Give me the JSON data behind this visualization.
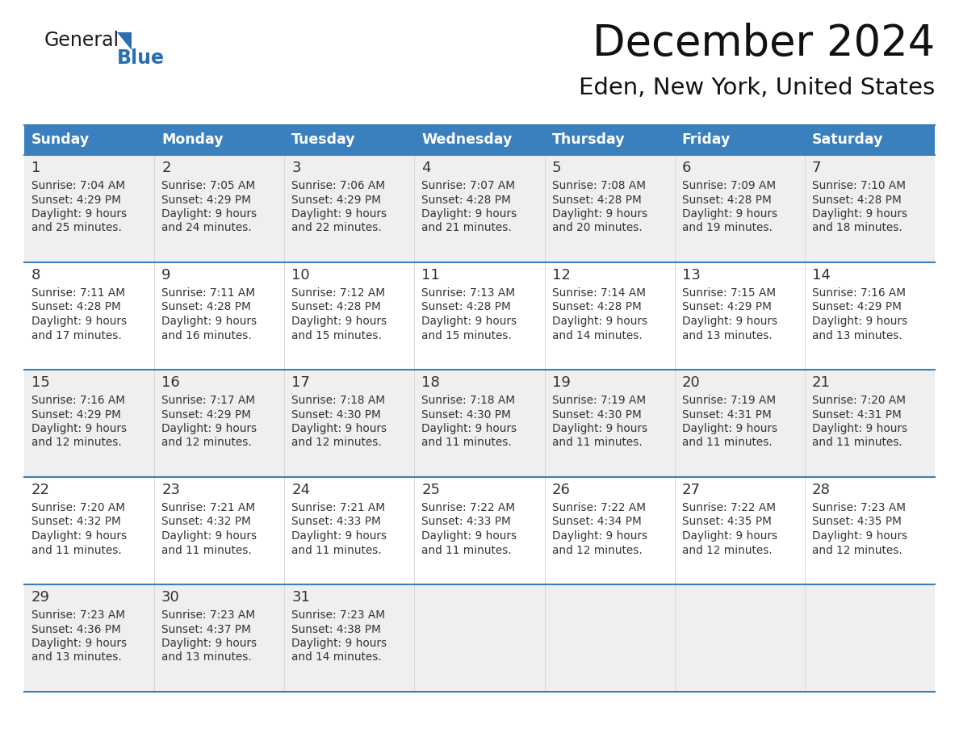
{
  "title": "December 2024",
  "subtitle": "Eden, New York, United States",
  "header_color": "#3a7fbe",
  "header_text_color": "#ffffff",
  "cell_bg_even": "#efefef",
  "cell_bg_odd": "#ffffff",
  "day_number_color": "#333333",
  "text_color": "#333333",
  "border_color": "#3a7fbe",
  "separator_color": "#c8c8c8",
  "days_of_week": [
    "Sunday",
    "Monday",
    "Tuesday",
    "Wednesday",
    "Thursday",
    "Friday",
    "Saturday"
  ],
  "calendar_data": [
    [
      {
        "day": 1,
        "sunrise": "7:04 AM",
        "sunset": "4:29 PM",
        "daylight_hours": 9,
        "daylight_minutes": 25
      },
      {
        "day": 2,
        "sunrise": "7:05 AM",
        "sunset": "4:29 PM",
        "daylight_hours": 9,
        "daylight_minutes": 24
      },
      {
        "day": 3,
        "sunrise": "7:06 AM",
        "sunset": "4:29 PM",
        "daylight_hours": 9,
        "daylight_minutes": 22
      },
      {
        "day": 4,
        "sunrise": "7:07 AM",
        "sunset": "4:28 PM",
        "daylight_hours": 9,
        "daylight_minutes": 21
      },
      {
        "day": 5,
        "sunrise": "7:08 AM",
        "sunset": "4:28 PM",
        "daylight_hours": 9,
        "daylight_minutes": 20
      },
      {
        "day": 6,
        "sunrise": "7:09 AM",
        "sunset": "4:28 PM",
        "daylight_hours": 9,
        "daylight_minutes": 19
      },
      {
        "day": 7,
        "sunrise": "7:10 AM",
        "sunset": "4:28 PM",
        "daylight_hours": 9,
        "daylight_minutes": 18
      }
    ],
    [
      {
        "day": 8,
        "sunrise": "7:11 AM",
        "sunset": "4:28 PM",
        "daylight_hours": 9,
        "daylight_minutes": 17
      },
      {
        "day": 9,
        "sunrise": "7:11 AM",
        "sunset": "4:28 PM",
        "daylight_hours": 9,
        "daylight_minutes": 16
      },
      {
        "day": 10,
        "sunrise": "7:12 AM",
        "sunset": "4:28 PM",
        "daylight_hours": 9,
        "daylight_minutes": 15
      },
      {
        "day": 11,
        "sunrise": "7:13 AM",
        "sunset": "4:28 PM",
        "daylight_hours": 9,
        "daylight_minutes": 15
      },
      {
        "day": 12,
        "sunrise": "7:14 AM",
        "sunset": "4:28 PM",
        "daylight_hours": 9,
        "daylight_minutes": 14
      },
      {
        "day": 13,
        "sunrise": "7:15 AM",
        "sunset": "4:29 PM",
        "daylight_hours": 9,
        "daylight_minutes": 13
      },
      {
        "day": 14,
        "sunrise": "7:16 AM",
        "sunset": "4:29 PM",
        "daylight_hours": 9,
        "daylight_minutes": 13
      }
    ],
    [
      {
        "day": 15,
        "sunrise": "7:16 AM",
        "sunset": "4:29 PM",
        "daylight_hours": 9,
        "daylight_minutes": 12
      },
      {
        "day": 16,
        "sunrise": "7:17 AM",
        "sunset": "4:29 PM",
        "daylight_hours": 9,
        "daylight_minutes": 12
      },
      {
        "day": 17,
        "sunrise": "7:18 AM",
        "sunset": "4:30 PM",
        "daylight_hours": 9,
        "daylight_minutes": 12
      },
      {
        "day": 18,
        "sunrise": "7:18 AM",
        "sunset": "4:30 PM",
        "daylight_hours": 9,
        "daylight_minutes": 11
      },
      {
        "day": 19,
        "sunrise": "7:19 AM",
        "sunset": "4:30 PM",
        "daylight_hours": 9,
        "daylight_minutes": 11
      },
      {
        "day": 20,
        "sunrise": "7:19 AM",
        "sunset": "4:31 PM",
        "daylight_hours": 9,
        "daylight_minutes": 11
      },
      {
        "day": 21,
        "sunrise": "7:20 AM",
        "sunset": "4:31 PM",
        "daylight_hours": 9,
        "daylight_minutes": 11
      }
    ],
    [
      {
        "day": 22,
        "sunrise": "7:20 AM",
        "sunset": "4:32 PM",
        "daylight_hours": 9,
        "daylight_minutes": 11
      },
      {
        "day": 23,
        "sunrise": "7:21 AM",
        "sunset": "4:32 PM",
        "daylight_hours": 9,
        "daylight_minutes": 11
      },
      {
        "day": 24,
        "sunrise": "7:21 AM",
        "sunset": "4:33 PM",
        "daylight_hours": 9,
        "daylight_minutes": 11
      },
      {
        "day": 25,
        "sunrise": "7:22 AM",
        "sunset": "4:33 PM",
        "daylight_hours": 9,
        "daylight_minutes": 11
      },
      {
        "day": 26,
        "sunrise": "7:22 AM",
        "sunset": "4:34 PM",
        "daylight_hours": 9,
        "daylight_minutes": 12
      },
      {
        "day": 27,
        "sunrise": "7:22 AM",
        "sunset": "4:35 PM",
        "daylight_hours": 9,
        "daylight_minutes": 12
      },
      {
        "day": 28,
        "sunrise": "7:23 AM",
        "sunset": "4:35 PM",
        "daylight_hours": 9,
        "daylight_minutes": 12
      }
    ],
    [
      {
        "day": 29,
        "sunrise": "7:23 AM",
        "sunset": "4:36 PM",
        "daylight_hours": 9,
        "daylight_minutes": 13
      },
      {
        "day": 30,
        "sunrise": "7:23 AM",
        "sunset": "4:37 PM",
        "daylight_hours": 9,
        "daylight_minutes": 13
      },
      {
        "day": 31,
        "sunrise": "7:23 AM",
        "sunset": "4:38 PM",
        "daylight_hours": 9,
        "daylight_minutes": 14
      },
      null,
      null,
      null,
      null
    ]
  ],
  "logo_color_general": "#1a1a1a",
  "logo_color_blue": "#2a6faf"
}
